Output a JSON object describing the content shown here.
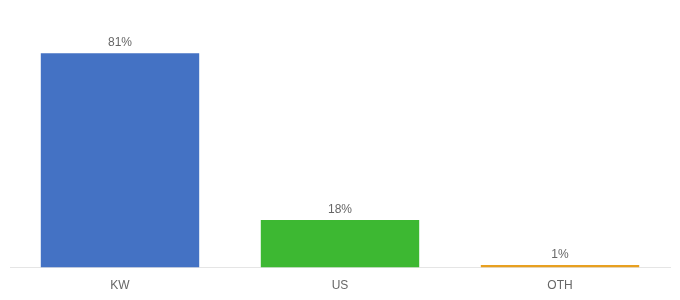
{
  "chart_data": {
    "type": "bar",
    "categories": [
      "KW",
      "US",
      "OTH"
    ],
    "values": [
      81,
      18,
      1
    ],
    "value_labels": [
      "81%",
      "18%",
      "1%"
    ],
    "colors": [
      "#4472c4",
      "#3db832",
      "#e8a020"
    ],
    "ylim": [
      0,
      92
    ],
    "grid": false,
    "data_labels": true,
    "tick_labels": "x"
  }
}
